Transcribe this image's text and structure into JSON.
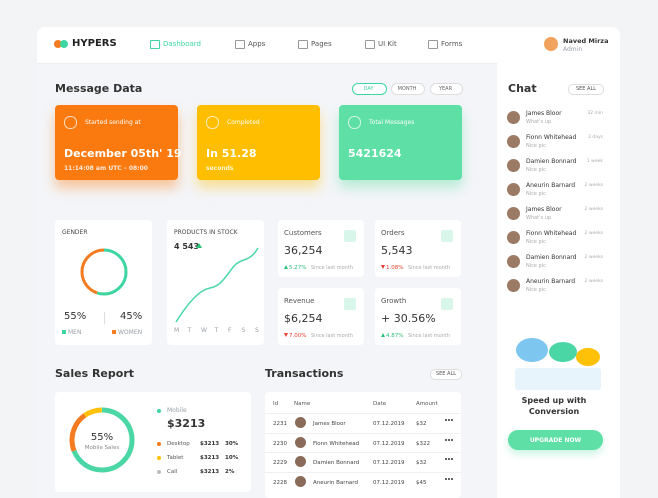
{
  "nav": {
    "brand": "HYPERS",
    "items": [
      "Dashboard",
      "Apps",
      "Pages",
      "UI Kit",
      "Forms"
    ],
    "user": {
      "name": "Naved Mirza",
      "role": "Admin"
    }
  },
  "message_data": {
    "title": "Message Data",
    "tabs": [
      "DAY",
      "MONTH",
      "YEAR"
    ],
    "cards": [
      {
        "label": "Started sending at",
        "value": "December 05th' 19",
        "sub": "11:14:08 am UTC – 08:00"
      },
      {
        "label": "Completed",
        "value": "In 51.28",
        "sub": "seconds"
      },
      {
        "label": "Total Messages",
        "value": "5421624"
      }
    ]
  },
  "gender": {
    "title": "GENDER",
    "legend": [
      "MEN",
      "WOMEN"
    ],
    "values": [
      55,
      45
    ],
    "value_labels": [
      "55%",
      "45%"
    ]
  },
  "products": {
    "title": "PRODUCTS IN STOCK",
    "value": "4 543",
    "days": [
      "M",
      "T",
      "W",
      "T",
      "F",
      "S",
      "S"
    ]
  },
  "stats": [
    {
      "label": "Customers",
      "value": "36,254",
      "change": "5.27%",
      "note": "Since last month",
      "direction": "up"
    },
    {
      "label": "Orders",
      "value": "5,543",
      "change": "1.08%",
      "note": "Since last month",
      "direction": "down"
    },
    {
      "label": "Revenue",
      "value": "$6,254",
      "change": "7.00%",
      "note": "Since last month",
      "direction": "down"
    },
    {
      "label": "Growth",
      "value": "+ 30.56%",
      "change": "4.87%",
      "note": "Since last month",
      "direction": "up"
    }
  ],
  "sales": {
    "title": "Sales Report",
    "center": "55%",
    "center_label": "Mobile Sales",
    "main": {
      "label": "Mobile",
      "value": "$3213"
    },
    "rows": [
      {
        "label": "Desktop",
        "value": "$3213",
        "share": "30%"
      },
      {
        "label": "Tablet",
        "value": "$3213",
        "share": "10%"
      },
      {
        "label": "Call",
        "value": "$3213",
        "share": "2%"
      }
    ]
  },
  "transactions": {
    "title": "Transactions",
    "action": "SEE ALL",
    "columns": [
      "Id",
      "Name",
      "Date",
      "Amount"
    ],
    "rows": [
      [
        "2231",
        "James Bloor",
        "07.12.2019",
        "$32"
      ],
      [
        "2230",
        "Fionn Whitehead",
        "07.12.2019",
        "$322"
      ],
      [
        "2229",
        "Damien Bonnard",
        "07.12.2019",
        "$32"
      ],
      [
        "2228",
        "Aneurin Barnard",
        "07.12.2019",
        "$45"
      ]
    ]
  },
  "chat": {
    "title": "Chat",
    "action": "SEE ALL",
    "messages": [
      {
        "name": "James Bloor",
        "text": "What's up",
        "time": "32 min"
      },
      {
        "name": "Fionn Whitehead",
        "text": "Nice pic",
        "time": "2 days"
      },
      {
        "name": "Damien Bonnard",
        "text": "Nice pic",
        "time": "1 week"
      },
      {
        "name": "Aneurin Barnard",
        "text": "Nice pic",
        "time": "2 weeks"
      },
      {
        "name": "James Bloor",
        "text": "What's up",
        "time": "2 weeks"
      },
      {
        "name": "Fionn Whitehead",
        "text": "Nice pic",
        "time": "2 weeks"
      },
      {
        "name": "Damien Bonnard",
        "text": "Nice pic",
        "time": "2 weeks"
      },
      {
        "name": "Aneurin Barnard",
        "text": "Nice pic",
        "time": "2 weeks"
      }
    ],
    "promo": "Speed up with Conversion",
    "button": "UPGRADE NOW"
  }
}
